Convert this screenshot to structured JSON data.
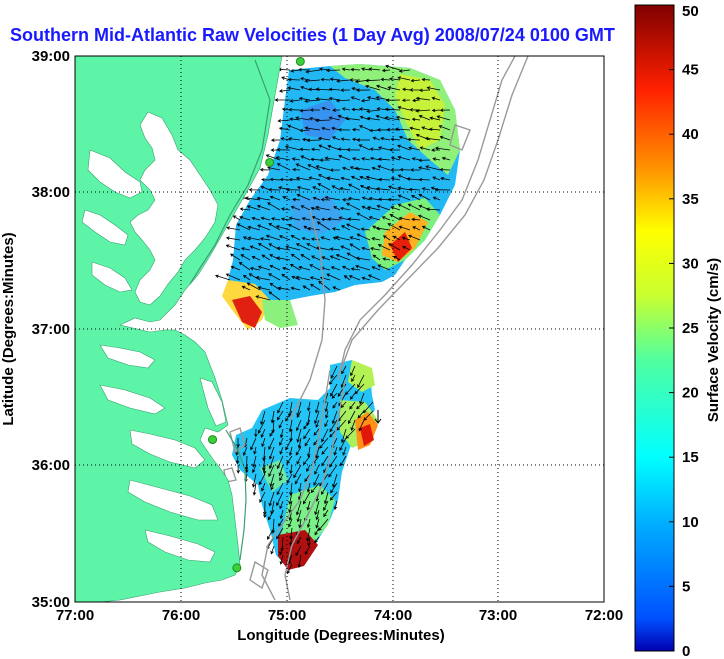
{
  "title": "Southern Mid-Atlantic Raw Velocities (1 Day Avg) 2008/07/24 0100 GMT",
  "x_axis": {
    "label": "Longitude (Degrees:Minutes)",
    "ticks": [
      "77:00",
      "76:00",
      "75:00",
      "74:00",
      "73:00",
      "72:00"
    ]
  },
  "y_axis": {
    "label": "Latitude (Degrees:Minutes)",
    "ticks": [
      "39:00",
      "38:00",
      "37:00",
      "36:00",
      "35:00"
    ]
  },
  "colorbar": {
    "label": "Surface Velocity (cm/s)",
    "min": 0,
    "max": 50,
    "ticks": [
      "0",
      "5",
      "10",
      "15",
      "20",
      "25",
      "30",
      "35",
      "40",
      "45",
      "50"
    ]
  },
  "map_extent": {
    "lon_min": -77,
    "lon_max": -72,
    "lat_min": 35,
    "lat_max": 39
  },
  "colors": {
    "land": "#5ef4a8",
    "water": "#ffffff",
    "title": "#1a1aff",
    "station": "#3ccf3c"
  },
  "radar_stations": [
    {
      "lon": -74.87,
      "lat": 38.96
    },
    {
      "lon": -75.16,
      "lat": 38.22
    },
    {
      "lon": -75.7,
      "lat": 36.19
    },
    {
      "lon": -75.47,
      "lat": 35.25
    }
  ]
}
